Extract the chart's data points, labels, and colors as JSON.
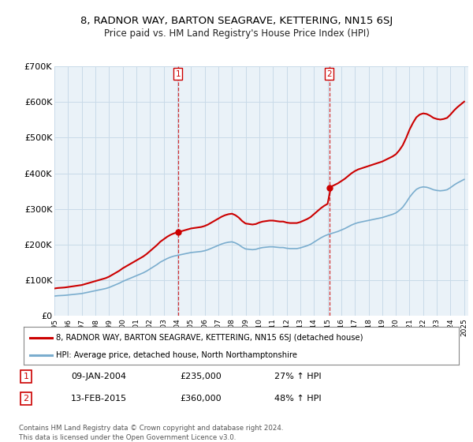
{
  "title": "8, RADNOR WAY, BARTON SEAGRAVE, KETTERING, NN15 6SJ",
  "subtitle": "Price paid vs. HM Land Registry's House Price Index (HPI)",
  "legend_line1": "8, RADNOR WAY, BARTON SEAGRAVE, KETTERING, NN15 6SJ (detached house)",
  "legend_line2": "HPI: Average price, detached house, North Northamptonshire",
  "annotation1_date": "09-JAN-2004",
  "annotation1_price": "£235,000",
  "annotation1_hpi": "27% ↑ HPI",
  "annotation2_date": "13-FEB-2015",
  "annotation2_price": "£360,000",
  "annotation2_hpi": "48% ↑ HPI",
  "footer": "Contains HM Land Registry data © Crown copyright and database right 2024.\nThis data is licensed under the Open Government Licence v3.0.",
  "sale1_x": 2004.05,
  "sale1_y": 235000,
  "sale2_x": 2015.12,
  "sale2_y": 360000,
  "ylim": [
    0,
    700000
  ],
  "xlim_left": 1995.0,
  "xlim_right": 2025.3,
  "red_color": "#cc0000",
  "blue_color": "#7aadce",
  "grid_color": "#c8dae8",
  "bg_color": "#ffffff",
  "plot_bg": "#eaf2f8",
  "years_hpi": [
    1995.0,
    1995.25,
    1995.5,
    1995.75,
    1996.0,
    1996.25,
    1996.5,
    1996.75,
    1997.0,
    1997.25,
    1997.5,
    1997.75,
    1998.0,
    1998.25,
    1998.5,
    1998.75,
    1999.0,
    1999.25,
    1999.5,
    1999.75,
    2000.0,
    2000.25,
    2000.5,
    2000.75,
    2001.0,
    2001.25,
    2001.5,
    2001.75,
    2002.0,
    2002.25,
    2002.5,
    2002.75,
    2003.0,
    2003.25,
    2003.5,
    2003.75,
    2004.0,
    2004.25,
    2004.5,
    2004.75,
    2005.0,
    2005.25,
    2005.5,
    2005.75,
    2006.0,
    2006.25,
    2006.5,
    2006.75,
    2007.0,
    2007.25,
    2007.5,
    2007.75,
    2008.0,
    2008.25,
    2008.5,
    2008.75,
    2009.0,
    2009.25,
    2009.5,
    2009.75,
    2010.0,
    2010.25,
    2010.5,
    2010.75,
    2011.0,
    2011.25,
    2011.5,
    2011.75,
    2012.0,
    2012.25,
    2012.5,
    2012.75,
    2013.0,
    2013.25,
    2013.5,
    2013.75,
    2014.0,
    2014.25,
    2014.5,
    2014.75,
    2015.0,
    2015.25,
    2015.5,
    2015.75,
    2016.0,
    2016.25,
    2016.5,
    2016.75,
    2017.0,
    2017.25,
    2017.5,
    2017.75,
    2018.0,
    2018.25,
    2018.5,
    2018.75,
    2019.0,
    2019.25,
    2019.5,
    2019.75,
    2020.0,
    2020.25,
    2020.5,
    2020.75,
    2021.0,
    2021.25,
    2021.5,
    2021.75,
    2022.0,
    2022.25,
    2022.5,
    2022.75,
    2023.0,
    2023.25,
    2023.5,
    2023.75,
    2024.0,
    2024.25,
    2024.5,
    2024.75,
    2025.0
  ],
  "hpi_values": [
    56000,
    57000,
    57500,
    58000,
    59000,
    60000,
    61000,
    62000,
    63000,
    65000,
    67000,
    69000,
    71000,
    73000,
    75000,
    77000,
    80000,
    84000,
    88000,
    92000,
    97000,
    101000,
    105000,
    109000,
    113000,
    117000,
    121000,
    126000,
    132000,
    138000,
    144000,
    151000,
    156000,
    161000,
    165000,
    168000,
    170000,
    172000,
    174000,
    176000,
    178000,
    179000,
    180000,
    181000,
    183000,
    186000,
    190000,
    194000,
    198000,
    202000,
    205000,
    207000,
    208000,
    205000,
    200000,
    193000,
    188000,
    187000,
    186000,
    187000,
    190000,
    192000,
    193000,
    194000,
    194000,
    193000,
    192000,
    192000,
    190000,
    189000,
    189000,
    189000,
    191000,
    194000,
    197000,
    201000,
    207000,
    213000,
    219000,
    224000,
    228000,
    231000,
    234000,
    237000,
    241000,
    245000,
    250000,
    255000,
    259000,
    262000,
    264000,
    266000,
    268000,
    270000,
    272000,
    274000,
    276000,
    279000,
    282000,
    285000,
    289000,
    296000,
    305000,
    318000,
    333000,
    345000,
    355000,
    360000,
    362000,
    361000,
    358000,
    354000,
    352000,
    351000,
    352000,
    354000,
    360000,
    367000,
    373000,
    378000,
    383000
  ]
}
